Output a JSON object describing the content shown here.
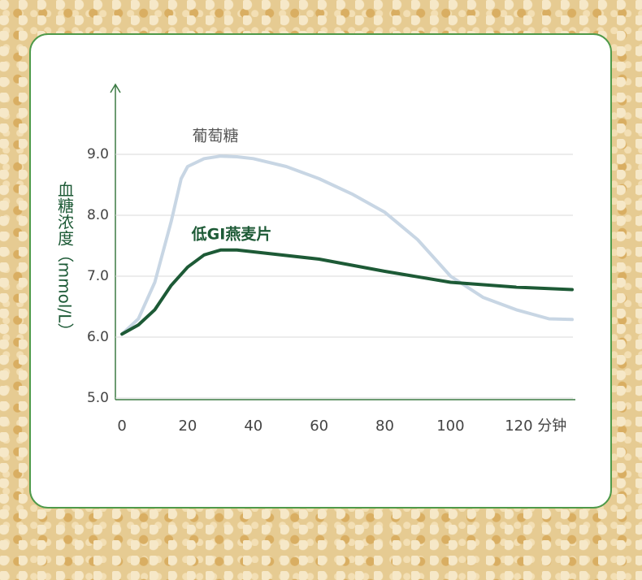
{
  "chart_data": {
    "type": "line",
    "y_label": "血糖浓度（mmol/L）",
    "xlim": [
      -2,
      138
    ],
    "ylim": [
      5,
      10
    ],
    "xticks": [
      0,
      20,
      40,
      60,
      80,
      100,
      {
        "value": 120,
        "label": "120 分钟"
      }
    ],
    "yticks": [
      {
        "value": 5,
        "label": "5.0"
      },
      {
        "value": 6,
        "label": "6.0"
      },
      {
        "value": 7,
        "label": "7.0"
      },
      {
        "value": 8,
        "label": "8.0"
      },
      {
        "value": 9,
        "label": "9.0"
      }
    ],
    "grid": true,
    "series": [
      {
        "name": "葡萄糖",
        "color": "#c8d6e4",
        "x": [
          0,
          5,
          10,
          15,
          18,
          20,
          25,
          30,
          35,
          40,
          50,
          60,
          70,
          80,
          90,
          100,
          110,
          120,
          130,
          137
        ],
        "values": [
          6.05,
          6.3,
          6.9,
          7.9,
          8.6,
          8.8,
          8.93,
          8.97,
          8.96,
          8.93,
          8.8,
          8.6,
          8.35,
          8.05,
          7.6,
          7.0,
          6.65,
          6.45,
          6.3,
          6.29
        ]
      },
      {
        "name": "低GI燕麦片",
        "color": "#1d5a36",
        "x": [
          0,
          5,
          10,
          15,
          20,
          25,
          30,
          35,
          40,
          60,
          80,
          100,
          120,
          137
        ],
        "values": [
          6.05,
          6.2,
          6.45,
          6.85,
          7.15,
          7.35,
          7.43,
          7.43,
          7.4,
          7.28,
          7.08,
          6.9,
          6.82,
          6.78
        ]
      }
    ]
  }
}
